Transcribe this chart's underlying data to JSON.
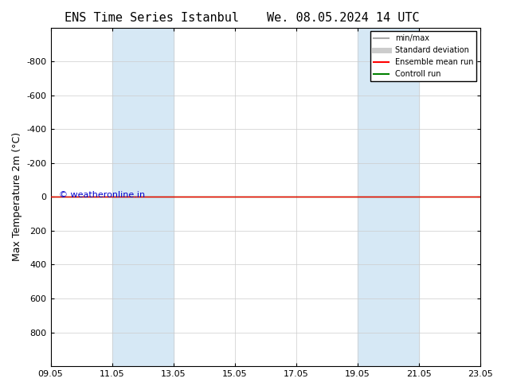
{
  "title_left": "ENS Time Series Istanbul",
  "title_right": "We. 08.05.2024 14 UTC",
  "ylabel": "Max Temperature 2m (°C)",
  "xtick_labels": [
    "09.05",
    "11.05",
    "13.05",
    "15.05",
    "17.05",
    "19.05",
    "21.05",
    "23.05"
  ],
  "xtick_positions": [
    0,
    2,
    4,
    6,
    8,
    10,
    12,
    14
  ],
  "ylim": [
    -1000,
    1000
  ],
  "yticks": [
    -800,
    -600,
    -400,
    -200,
    0,
    200,
    400,
    600,
    800
  ],
  "shaded_bands": [
    {
      "x_start": 2,
      "x_end": 4
    },
    {
      "x_start": 10,
      "x_end": 12
    }
  ],
  "shaded_color": "#d6e8f5",
  "horizontal_line_y": 0,
  "ensemble_mean_color": "#ff0000",
  "control_run_color": "#008000",
  "watermark": "© weatheronline.in",
  "watermark_color": "#0000cc",
  "legend_items": [
    {
      "label": "min/max",
      "color": "#aaaaaa",
      "lw": 1.5
    },
    {
      "label": "Standard deviation",
      "color": "#cccccc",
      "lw": 5
    },
    {
      "label": "Ensemble mean run",
      "color": "#ff0000",
      "lw": 1.5
    },
    {
      "label": "Controll run",
      "color": "#008000",
      "lw": 1.5
    }
  ],
  "background_color": "#ffffff",
  "plot_bg_color": "#ffffff",
  "title_fontsize": 11,
  "axis_fontsize": 9,
  "tick_fontsize": 8
}
